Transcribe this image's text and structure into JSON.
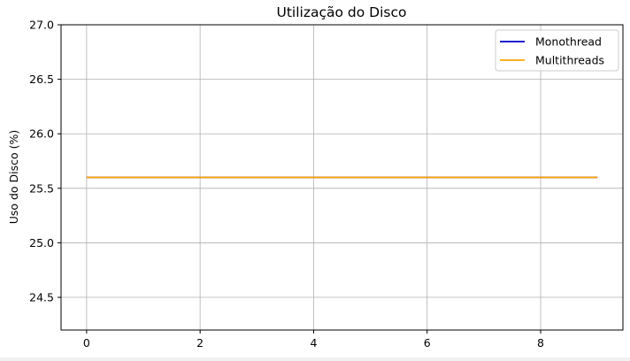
{
  "chart_data": {
    "type": "line",
    "title": "Utilização do Disco",
    "xlabel": "",
    "ylabel": "Uso do Disco (%)",
    "xlim": [
      -0.45,
      9.45
    ],
    "ylim": [
      24.2,
      27.0
    ],
    "x_ticks": [
      0,
      2,
      4,
      6,
      8
    ],
    "y_ticks": [
      24.5,
      25.0,
      25.5,
      26.0,
      26.5,
      27.0
    ],
    "grid": true,
    "legend_position": "top-right",
    "series": [
      {
        "name": "Monothread",
        "color": "#0000cc",
        "x": [
          0,
          1,
          2,
          3,
          4,
          5,
          6,
          7,
          8,
          9
        ],
        "y": [
          25.6,
          25.6,
          25.6,
          25.6,
          25.6,
          25.6,
          25.6,
          25.6,
          25.6,
          25.6
        ]
      },
      {
        "name": "Multithreads",
        "color": "#ffa500",
        "x": [
          0,
          1,
          2,
          3,
          4,
          5,
          6,
          7,
          8,
          9
        ],
        "y": [
          25.6,
          25.6,
          25.6,
          25.6,
          25.6,
          25.6,
          25.6,
          25.6,
          25.6,
          25.6
        ]
      }
    ]
  }
}
